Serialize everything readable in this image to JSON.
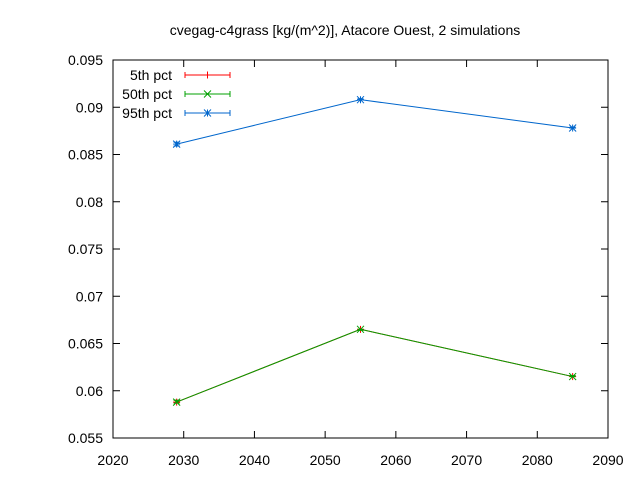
{
  "chart_data": {
    "type": "line",
    "title": "cvegag-c4grass [kg/(m^2)], Atacore Ouest, 2 simulations",
    "xlabel": "",
    "ylabel": "",
    "xlim": [
      2020,
      2090
    ],
    "ylim": [
      0.055,
      0.095
    ],
    "x_ticks": [
      2020,
      2030,
      2040,
      2050,
      2060,
      2070,
      2080,
      2090
    ],
    "y_ticks": [
      0.055,
      0.06,
      0.065,
      0.07,
      0.075,
      0.08,
      0.085,
      0.09,
      0.095
    ],
    "y_tick_labels": [
      "0.055",
      "0.06",
      "0.065",
      "0.07",
      "0.075",
      "0.08",
      "0.085",
      "0.09",
      "0.095"
    ],
    "grid": false,
    "legend_position": "top-left",
    "x": [
      2029,
      2055,
      2085
    ],
    "series": [
      {
        "name": "5th pct",
        "color": "#ff0000",
        "marker": "plus",
        "values": [
          0.0588,
          0.0665,
          0.0615
        ],
        "err_low": [
          0.0587,
          0.0664,
          0.0615
        ],
        "err_high": [
          0.059,
          0.0665,
          0.0616
        ]
      },
      {
        "name": "50th pct",
        "color": "#00a000",
        "marker": "cross",
        "values": [
          0.0588,
          0.0665,
          0.0615
        ],
        "err_low": [
          0.0587,
          0.0664,
          0.0615
        ],
        "err_high": [
          0.059,
          0.0665,
          0.0616
        ]
      },
      {
        "name": "95th pct",
        "color": "#0066cc",
        "marker": "star",
        "values": [
          0.0861,
          0.0908,
          0.0878
        ],
        "err_low": [
          0.0859,
          0.0908,
          0.0878
        ],
        "err_high": [
          0.0863,
          0.0909,
          0.0879
        ]
      }
    ]
  }
}
